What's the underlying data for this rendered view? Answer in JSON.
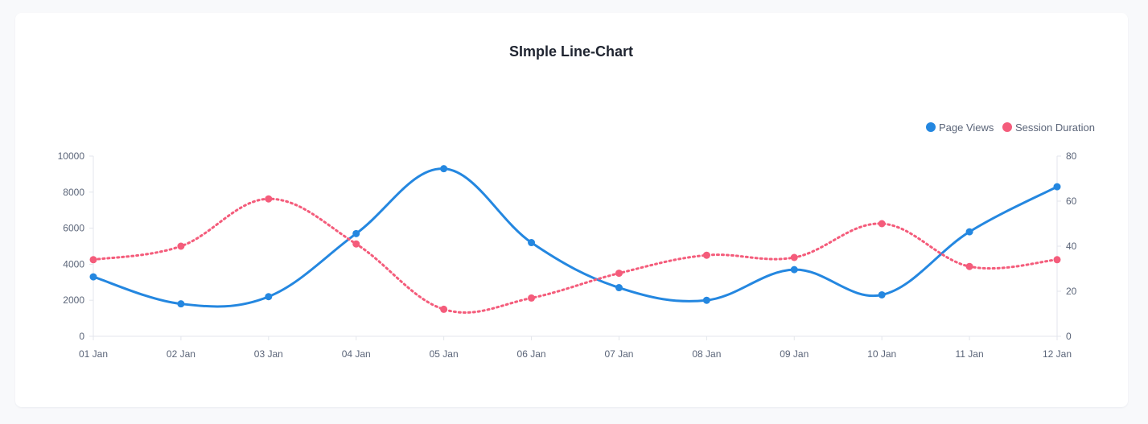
{
  "chart_data": {
    "type": "line",
    "title": "SImple Line-Chart",
    "categories": [
      "01 Jan",
      "02 Jan",
      "03 Jan",
      "04 Jan",
      "05 Jan",
      "06 Jan",
      "07 Jan",
      "08 Jan",
      "09 Jan",
      "10 Jan",
      "11 Jan",
      "12 Jan"
    ],
    "series": [
      {
        "name": "Page Views",
        "axis": "left",
        "color": "#2487e0",
        "style": "solid",
        "values": [
          3300,
          1800,
          2200,
          5700,
          9300,
          5200,
          2700,
          2000,
          3700,
          2300,
          5800,
          8300
        ]
      },
      {
        "name": "Session Duration",
        "axis": "right",
        "color": "#f45c7b",
        "style": "dotted",
        "values": [
          34,
          40,
          61,
          41,
          12,
          17,
          28,
          36,
          35,
          50,
          31,
          34
        ]
      }
    ],
    "y_left": {
      "min": 0,
      "max": 10000,
      "ticks": [
        "10000",
        "8000",
        "6000",
        "4000",
        "2000",
        "0"
      ]
    },
    "y_right": {
      "min": 0,
      "max": 80,
      "ticks": [
        "80",
        "60",
        "40",
        "20",
        "0"
      ]
    },
    "legend_position": "top-right",
    "grid": false
  }
}
